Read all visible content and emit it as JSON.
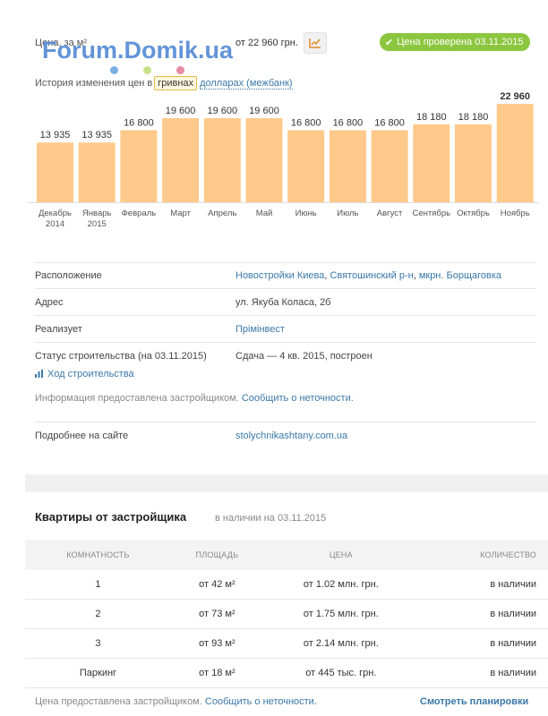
{
  "price": {
    "label": "Цена, за м²",
    "value": "от 22 960 грн.",
    "chart_icon": "chart-icon",
    "verified": "Цена проверена 03.11.2015",
    "verified_color": "#8cc63f"
  },
  "watermark": "Forum.Domik.ua",
  "history": {
    "label": "История изменения цен в",
    "active_currency": "гривнах",
    "other_currency": "долларах (межбанк)"
  },
  "chart_data": {
    "type": "bar",
    "categories": [
      "Декабрь 2014",
      "Январь 2015",
      "Февраль",
      "Март",
      "Апрель",
      "Май",
      "Июнь",
      "Июль",
      "Август",
      "Сентябрь",
      "Октябрь",
      "Ноябрь"
    ],
    "category_lines": [
      [
        "Декабрь",
        "2014"
      ],
      [
        "Январь",
        "2015"
      ],
      [
        "Февраль"
      ],
      [
        "Март"
      ],
      [
        "Апрель"
      ],
      [
        "Май"
      ],
      [
        "Июнь"
      ],
      [
        "Июль"
      ],
      [
        "Август"
      ],
      [
        "Сентябрь"
      ],
      [
        "Октябрь"
      ],
      [
        "Ноябрь"
      ]
    ],
    "values": [
      13935,
      13935,
      16800,
      19600,
      19600,
      19600,
      16800,
      16800,
      16800,
      18180,
      18180,
      22960
    ],
    "value_labels": [
      "13 935",
      "13 935",
      "16 800",
      "19 600",
      "19 600",
      "19 600",
      "16 800",
      "16 800",
      "16 800",
      "18 180",
      "18 180",
      "22 960"
    ],
    "highlight_last": true,
    "bar_color": "#ffc98b",
    "ylim": [
      0,
      22960
    ]
  },
  "info": {
    "location_label": "Расположение",
    "location_links": [
      "Новостройки Киева",
      "Святошинский р-н",
      "мкрн. Борщаговка"
    ],
    "address_label": "Адрес",
    "address_value": "ул. Якуба Коласа, 2б",
    "seller_label": "Реализует",
    "seller_value": "Прімінвест",
    "status_label": "Статус строительства (на 03.11.2015)",
    "status_value": "Сдача — 4 кв. 2015, построен",
    "progress_link": "Ход строительства",
    "disclaimer_text": "Информация предоставлена застройщиком.",
    "disclaimer_link": "Сообщить о неточности.",
    "more_label": "Подробнее на сайте",
    "more_value": "stolychnikashtany.com.ua"
  },
  "apartments": {
    "title": "Квартиры от застройщика",
    "subtitle": "в наличии на 03.11.2015",
    "columns": [
      "КОМНАТНОСТЬ",
      "ПЛОЩАДЬ",
      "ЦЕНА",
      "КОЛИЧЕСТВО"
    ],
    "rows": [
      {
        "rooms": "1",
        "area": "от 42 м²",
        "price": "от 1.02 млн. грн.",
        "qty": "в наличии"
      },
      {
        "rooms": "2",
        "area": "от 73 м²",
        "price": "от 1.75 млн. грн.",
        "qty": "в наличии"
      },
      {
        "rooms": "3",
        "area": "от 93 м²",
        "price": "от 2.14 млн. грн.",
        "qty": "в наличии"
      },
      {
        "rooms": "Паркинг",
        "area": "от 18 м²",
        "price": "от 445 тыс. грн.",
        "qty": "в наличии"
      }
    ],
    "footer_text": "Цена предоставлена застройщиком.",
    "footer_link": "Сообщить о неточности.",
    "plans_link": "Смотреть планировки"
  }
}
